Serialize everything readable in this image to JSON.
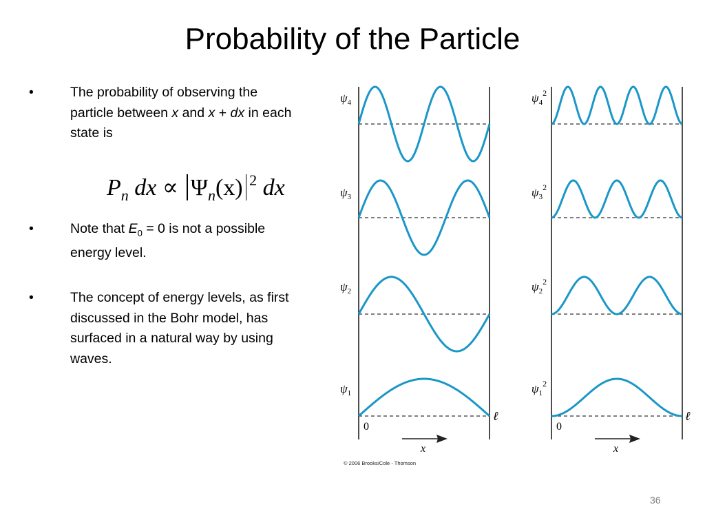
{
  "slide": {
    "title": "Probability of the Particle",
    "slide_number": "36",
    "bullet_char": "•"
  },
  "bullets": [
    {
      "pre": "The probability of observing the particle between ",
      "v1": "x",
      "mid1": " and ",
      "v2": "x",
      "mid2": " + ",
      "v3": "dx",
      "post": " in each state is"
    },
    {
      "pre": "Note that ",
      "var": "E",
      "sub": "0",
      "post": " = 0 is not a possible energy level."
    },
    {
      "text": "The concept of energy levels, as first discussed in the Bohr model, has surfaced in a natural way by using waves."
    }
  ],
  "formula": {
    "p": "P",
    "n": "n",
    "dx": "dx",
    "prop": "∝",
    "psi": "Ψ",
    "arg": "(x)",
    "power": "2"
  },
  "figure": {
    "copyright": "© 2006 Brooks/Cole - Thomson",
    "left_labels": [
      "ψ4",
      "ψ3",
      "ψ2",
      "ψ1"
    ],
    "right_labels": [
      "ψ4 2",
      "ψ3 2",
      "ψ2 2",
      "ψ1 2"
    ],
    "origin_label": "0",
    "end_label": "ℓ",
    "axis_label": "x",
    "levels": [
      4,
      3,
      2,
      1
    ],
    "wave_color": "#1a97c8",
    "axis_color": "#222222",
    "dash_color": "#333333"
  }
}
